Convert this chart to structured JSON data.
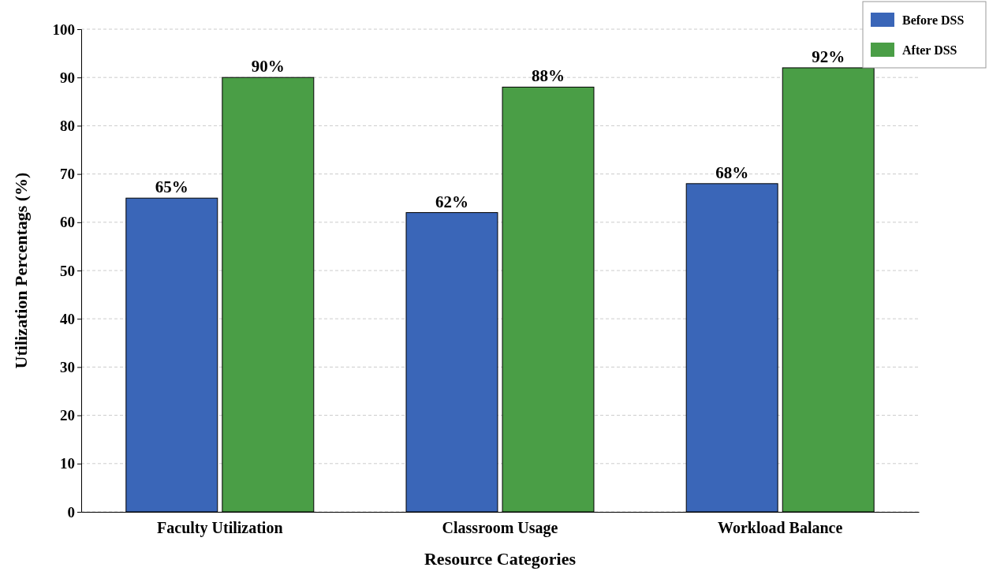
{
  "chart_data": {
    "type": "bar",
    "xlabel": "Resource Categories",
    "ylabel": "Utilization Percentags (%)",
    "categories": [
      "Faculty Utilization",
      "Classroom Usage",
      "Workload Balance"
    ],
    "series": [
      {
        "name": "Before DSS",
        "color": "#3a66b8",
        "values": [
          65,
          62,
          68
        ],
        "value_labels": [
          "65%",
          "62%",
          "68%"
        ]
      },
      {
        "name": "After DSS",
        "color": "#4a9e46",
        "values": [
          90,
          88,
          92
        ],
        "value_labels": [
          "90%",
          "88%",
          "92%"
        ]
      }
    ],
    "ylim": [
      0,
      100
    ],
    "yticks": [
      0,
      10,
      20,
      30,
      40,
      50,
      60,
      70,
      80,
      90,
      100
    ],
    "grid": "y",
    "legend": "top right"
  }
}
